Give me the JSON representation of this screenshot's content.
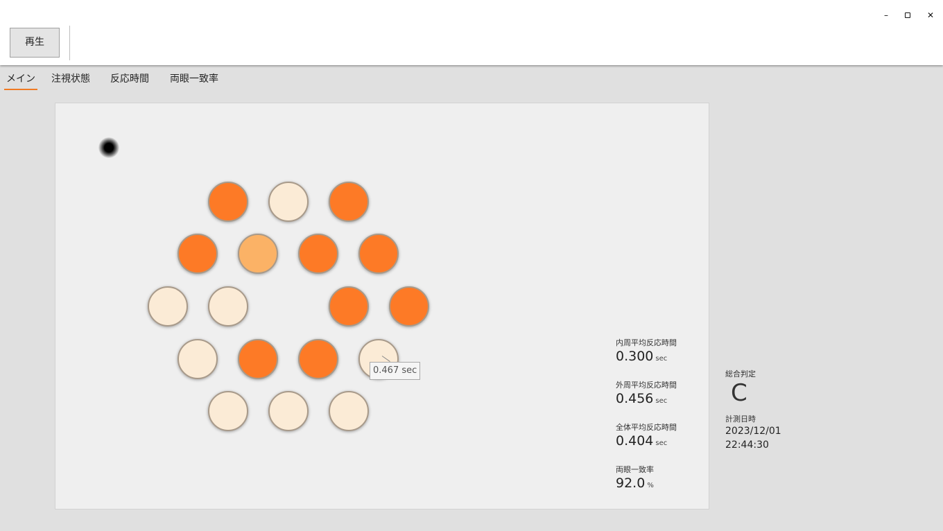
{
  "window": {
    "controls": {
      "minimize": "–",
      "close": "✕"
    }
  },
  "toolbar": {
    "play_label": "再生"
  },
  "tabs": [
    {
      "label": "メイン",
      "active": true
    },
    {
      "label": "注視状態",
      "active": false
    },
    {
      "label": "反応時間",
      "active": false
    },
    {
      "label": "両眼一致率",
      "active": false
    }
  ],
  "colors": {
    "accent": "#f07a22",
    "target_dark": "#fd7a26",
    "target_medium": "#fbb266",
    "target_light": "#fbebd6"
  },
  "targets": [
    {
      "row": 1,
      "col": 1,
      "level": "dark"
    },
    {
      "row": 1,
      "col": 2,
      "level": "light"
    },
    {
      "row": 1,
      "col": 3,
      "level": "dark"
    },
    {
      "row": 2,
      "col": 1,
      "level": "dark"
    },
    {
      "row": 2,
      "col": 2,
      "level": "medium"
    },
    {
      "row": 2,
      "col": 3,
      "level": "dark"
    },
    {
      "row": 2,
      "col": 4,
      "level": "dark"
    },
    {
      "row": 3,
      "col": 1,
      "level": "light"
    },
    {
      "row": 3,
      "col": 2,
      "level": "light"
    },
    {
      "row": 3,
      "col": 4,
      "level": "dark"
    },
    {
      "row": 3,
      "col": 5,
      "level": "dark"
    },
    {
      "row": 4,
      "col": 1,
      "level": "light"
    },
    {
      "row": 4,
      "col": 2,
      "level": "dark"
    },
    {
      "row": 4,
      "col": 3,
      "level": "dark"
    },
    {
      "row": 4,
      "col": 4,
      "level": "light"
    },
    {
      "row": 5,
      "col": 1,
      "level": "light"
    },
    {
      "row": 5,
      "col": 2,
      "level": "light"
    },
    {
      "row": 5,
      "col": 3,
      "level": "light"
    }
  ],
  "tooltip": {
    "text": "0.467 sec"
  },
  "stats": {
    "inner": {
      "label": "内周平均反応時間",
      "value": "0.300",
      "unit": "sec"
    },
    "outer": {
      "label": "外周平均反応時間",
      "value": "0.456",
      "unit": "sec"
    },
    "total": {
      "label": "全体平均反応時間",
      "value": "0.404",
      "unit": "sec"
    },
    "binocular": {
      "label": "両眼一致率",
      "value": "92.0",
      "unit": "%"
    }
  },
  "summary": {
    "grade_label": "総合判定",
    "grade": "C",
    "date_label": "計測日時",
    "date": "2023/12/01",
    "time": "22:44:30"
  }
}
